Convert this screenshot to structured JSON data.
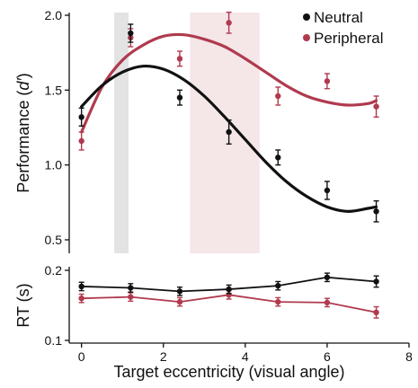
{
  "chart_data": [
    {
      "type": "line",
      "panel": "performance",
      "ylabel": "Performance (d′)",
      "ylabel_prefix": "Performance (",
      "ylabel_italic": "d′",
      "ylabel_suffix": ")",
      "xlim": [
        -0.3,
        8
      ],
      "ylim": [
        0.4,
        2.0
      ],
      "yticks": [
        0.5,
        1.0,
        1.5,
        2.0
      ],
      "ytick_labels": [
        "0.5",
        "1.0",
        "1.5",
        "2.0"
      ],
      "legend_position": "top-right",
      "shaded_regions": [
        {
          "x0": 0.8,
          "x1": 1.15,
          "color": "#e3e3e3"
        },
        {
          "x0": 2.65,
          "x1": 4.35,
          "color": "#f5e6e8"
        }
      ],
      "series": [
        {
          "name": "Neutral",
          "color": "#111111",
          "x": [
            0,
            1.2,
            2.4,
            3.6,
            4.8,
            6.0,
            7.2
          ],
          "y": [
            1.32,
            1.88,
            1.45,
            1.22,
            1.05,
            0.83,
            0.69
          ],
          "err": [
            0.06,
            0.06,
            0.05,
            0.08,
            0.05,
            0.06,
            0.07
          ],
          "fit": [
            [
              0,
              1.39
            ],
            [
              0.5,
              1.53
            ],
            [
              1.0,
              1.62
            ],
            [
              1.5,
              1.66
            ],
            [
              2.0,
              1.64
            ],
            [
              2.5,
              1.57
            ],
            [
              3.0,
              1.46
            ],
            [
              3.5,
              1.32
            ],
            [
              4.0,
              1.17
            ],
            [
              4.5,
              1.02
            ],
            [
              5.0,
              0.89
            ],
            [
              5.5,
              0.79
            ],
            [
              6.0,
              0.72
            ],
            [
              6.5,
              0.69
            ],
            [
              7.0,
              0.71
            ],
            [
              7.2,
              0.72
            ]
          ]
        },
        {
          "name": "Peripheral",
          "color": "#b03a4e",
          "x": [
            0,
            1.2,
            2.4,
            3.6,
            4.8,
            6.0,
            7.2
          ],
          "y": [
            1.16,
            1.85,
            1.71,
            1.95,
            1.46,
            1.56,
            1.39
          ],
          "err": [
            0.06,
            0.06,
            0.05,
            0.07,
            0.06,
            0.05,
            0.07
          ],
          "fit": [
            [
              0,
              1.22
            ],
            [
              0.5,
              1.52
            ],
            [
              1.0,
              1.7
            ],
            [
              1.5,
              1.8
            ],
            [
              2.0,
              1.86
            ],
            [
              2.5,
              1.87
            ],
            [
              3.0,
              1.84
            ],
            [
              3.5,
              1.79
            ],
            [
              4.0,
              1.71
            ],
            [
              4.5,
              1.62
            ],
            [
              5.0,
              1.53
            ],
            [
              5.5,
              1.46
            ],
            [
              6.0,
              1.42
            ],
            [
              6.5,
              1.4
            ],
            [
              7.0,
              1.41
            ],
            [
              7.2,
              1.43
            ]
          ]
        }
      ]
    },
    {
      "type": "line",
      "panel": "rt",
      "ylabel": "RT (s)",
      "xlabel": "Target eccentricity (visual angle)",
      "xlim": [
        -0.3,
        8
      ],
      "ylim": [
        0.1,
        0.2
      ],
      "xticks": [
        0,
        2,
        4,
        6,
        8
      ],
      "xtick_labels": [
        "0",
        "2",
        "4",
        "6",
        "8"
      ],
      "yticks": [
        0.1,
        0.2
      ],
      "ytick_labels": [
        "0.1",
        "0.2"
      ],
      "series": [
        {
          "name": "Neutral",
          "color": "#111111",
          "x": [
            0,
            1.2,
            2.4,
            3.6,
            4.8,
            6.0,
            7.2
          ],
          "y": [
            0.177,
            0.175,
            0.17,
            0.173,
            0.178,
            0.19,
            0.184
          ],
          "err": [
            0.006,
            0.006,
            0.006,
            0.006,
            0.006,
            0.006,
            0.008
          ]
        },
        {
          "name": "Peripheral",
          "color": "#b03a4e",
          "x": [
            0,
            1.2,
            2.4,
            3.6,
            4.8,
            6.0,
            7.2
          ],
          "y": [
            0.16,
            0.162,
            0.155,
            0.165,
            0.155,
            0.154,
            0.14
          ],
          "err": [
            0.006,
            0.006,
            0.006,
            0.006,
            0.006,
            0.006,
            0.008
          ]
        }
      ]
    }
  ]
}
